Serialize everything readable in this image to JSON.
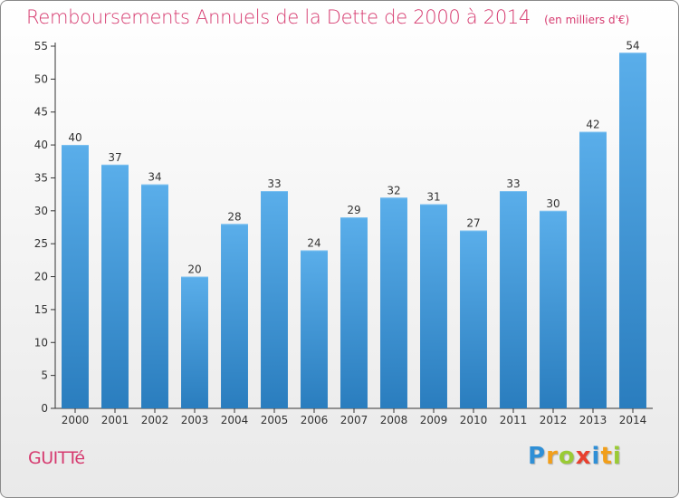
{
  "header": {
    "title": "Remboursements Annuels de la Dette de 2000 à 2014",
    "subtitle": "(en milliers d'€)"
  },
  "footer": {
    "commune": "GUITTé",
    "brand_letters": [
      "P",
      "r",
      "o",
      "x",
      "i",
      "t",
      "i"
    ]
  },
  "colors": {
    "title": "#d63a6f",
    "bar_top": "#5aaeea",
    "bar_bottom": "#2a7dbe",
    "axis": "#333333"
  },
  "chart_data": {
    "type": "bar",
    "categories": [
      "2000",
      "2001",
      "2002",
      "2003",
      "2004",
      "2005",
      "2006",
      "2007",
      "2008",
      "2009",
      "2010",
      "2011",
      "2012",
      "2013",
      "2014"
    ],
    "values": [
      40,
      37,
      34,
      20,
      28,
      33,
      24,
      29,
      32,
      31,
      27,
      33,
      30,
      42,
      54
    ],
    "title": "Remboursements Annuels de la Dette de 2000 à 2014",
    "subtitle": "(en milliers d'€)",
    "xlabel": "",
    "ylabel": "",
    "ylim": [
      0,
      55
    ],
    "yticks": [
      0,
      5,
      10,
      15,
      20,
      25,
      30,
      35,
      40,
      45,
      50,
      55
    ],
    "data_labels": true,
    "grid": false,
    "legend": "none"
  }
}
